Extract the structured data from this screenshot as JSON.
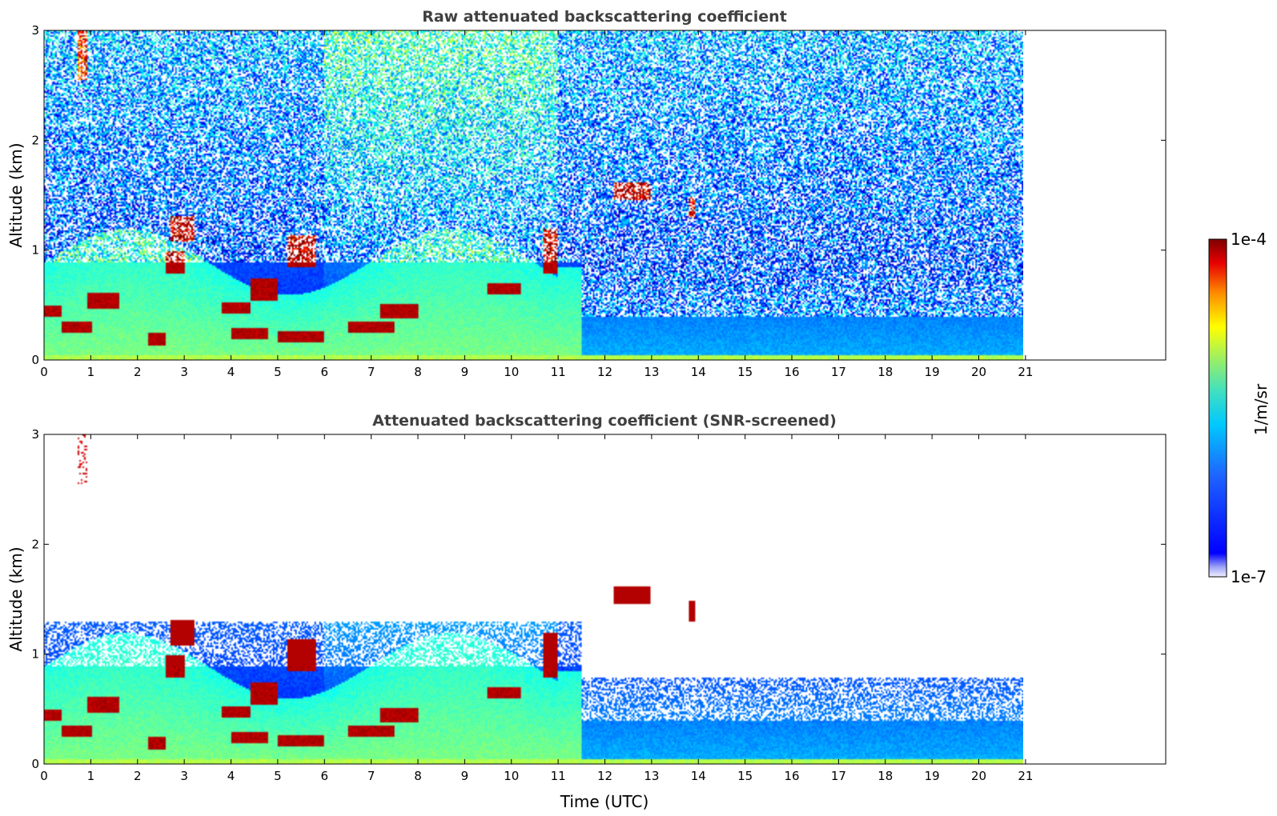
{
  "chart_data": [
    {
      "type": "heatmap",
      "title": "Raw attenuated backscattering coefficient",
      "ylabel": "Altitude (km)",
      "xlabel": "",
      "xlim": [
        0,
        24
      ],
      "ylim": [
        0,
        3
      ],
      "xticks": [
        "0",
        "1",
        "2",
        "3",
        "4",
        "5",
        "6",
        "7",
        "8",
        "9",
        "10",
        "11",
        "12",
        "13",
        "14",
        "15",
        "16",
        "17",
        "18",
        "19",
        "20",
        "21"
      ],
      "yticks": [
        "0",
        "1",
        "2",
        "3"
      ],
      "data_time_range": [
        0,
        21
      ],
      "screened": false
    },
    {
      "type": "heatmap",
      "title": "Attenuated backscattering coefficient (SNR-screened)",
      "ylabel": "Altitude (km)",
      "xlabel": "Time (UTC)",
      "xlim": [
        0,
        24
      ],
      "ylim": [
        0,
        3
      ],
      "xticks": [
        "0",
        "1",
        "2",
        "3",
        "4",
        "5",
        "6",
        "7",
        "8",
        "9",
        "10",
        "11",
        "12",
        "13",
        "14",
        "15",
        "16",
        "17",
        "18",
        "19",
        "20",
        "21"
      ],
      "yticks": [
        "0",
        "1",
        "2",
        "3"
      ],
      "data_time_range": [
        0,
        21
      ],
      "screened": true
    }
  ],
  "colorbar": {
    "max_label": "1e-4",
    "min_label": "1e-7",
    "unit_label": "1/m/sr",
    "scale": "log",
    "colormap": "jet"
  }
}
